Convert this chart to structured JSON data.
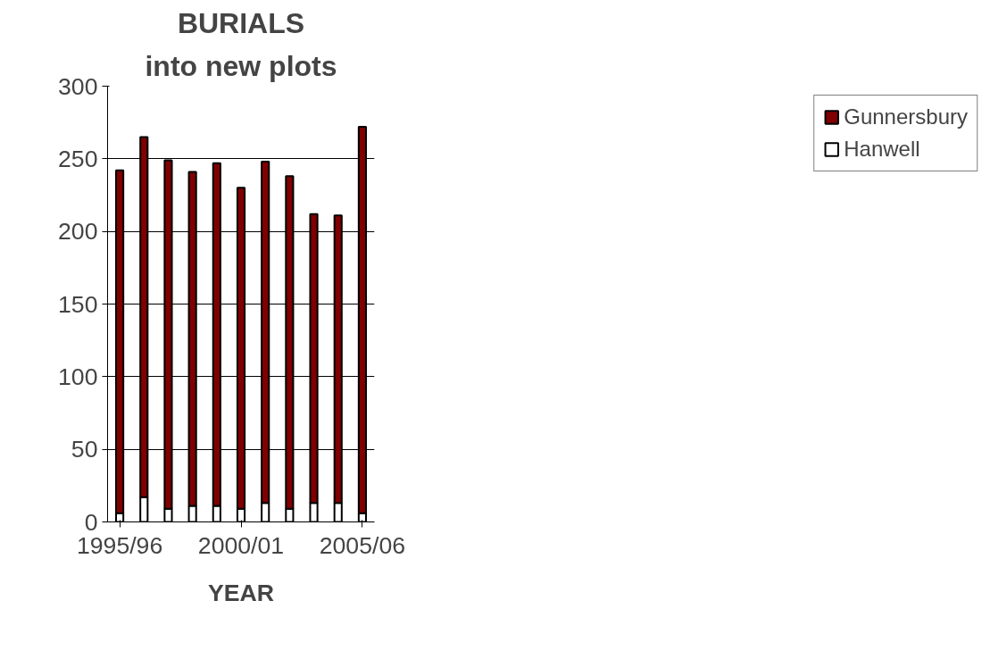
{
  "chart_data": {
    "type": "bar",
    "title": "BURIALS",
    "subtitle": "into new plots",
    "xlabel": "YEAR",
    "categories": [
      "1995/96",
      null,
      null,
      null,
      null,
      "2000/01",
      null,
      null,
      null,
      null,
      "2005/06"
    ],
    "stacked": true,
    "series": [
      {
        "name": "Hanwell",
        "color": "#ffffff",
        "values": [
          6,
          17,
          9,
          11,
          11,
          9,
          13,
          9,
          13,
          13,
          6
        ]
      },
      {
        "name": "Gunnersbury",
        "color": "#800000",
        "values": [
          236,
          248,
          240,
          230,
          236,
          221,
          235,
          229,
          199,
          198,
          266
        ]
      }
    ],
    "ylim": [
      0,
      300
    ],
    "yticks": [
      0,
      50,
      100,
      150,
      200,
      250,
      300
    ],
    "grid": "y",
    "legend": "right"
  }
}
